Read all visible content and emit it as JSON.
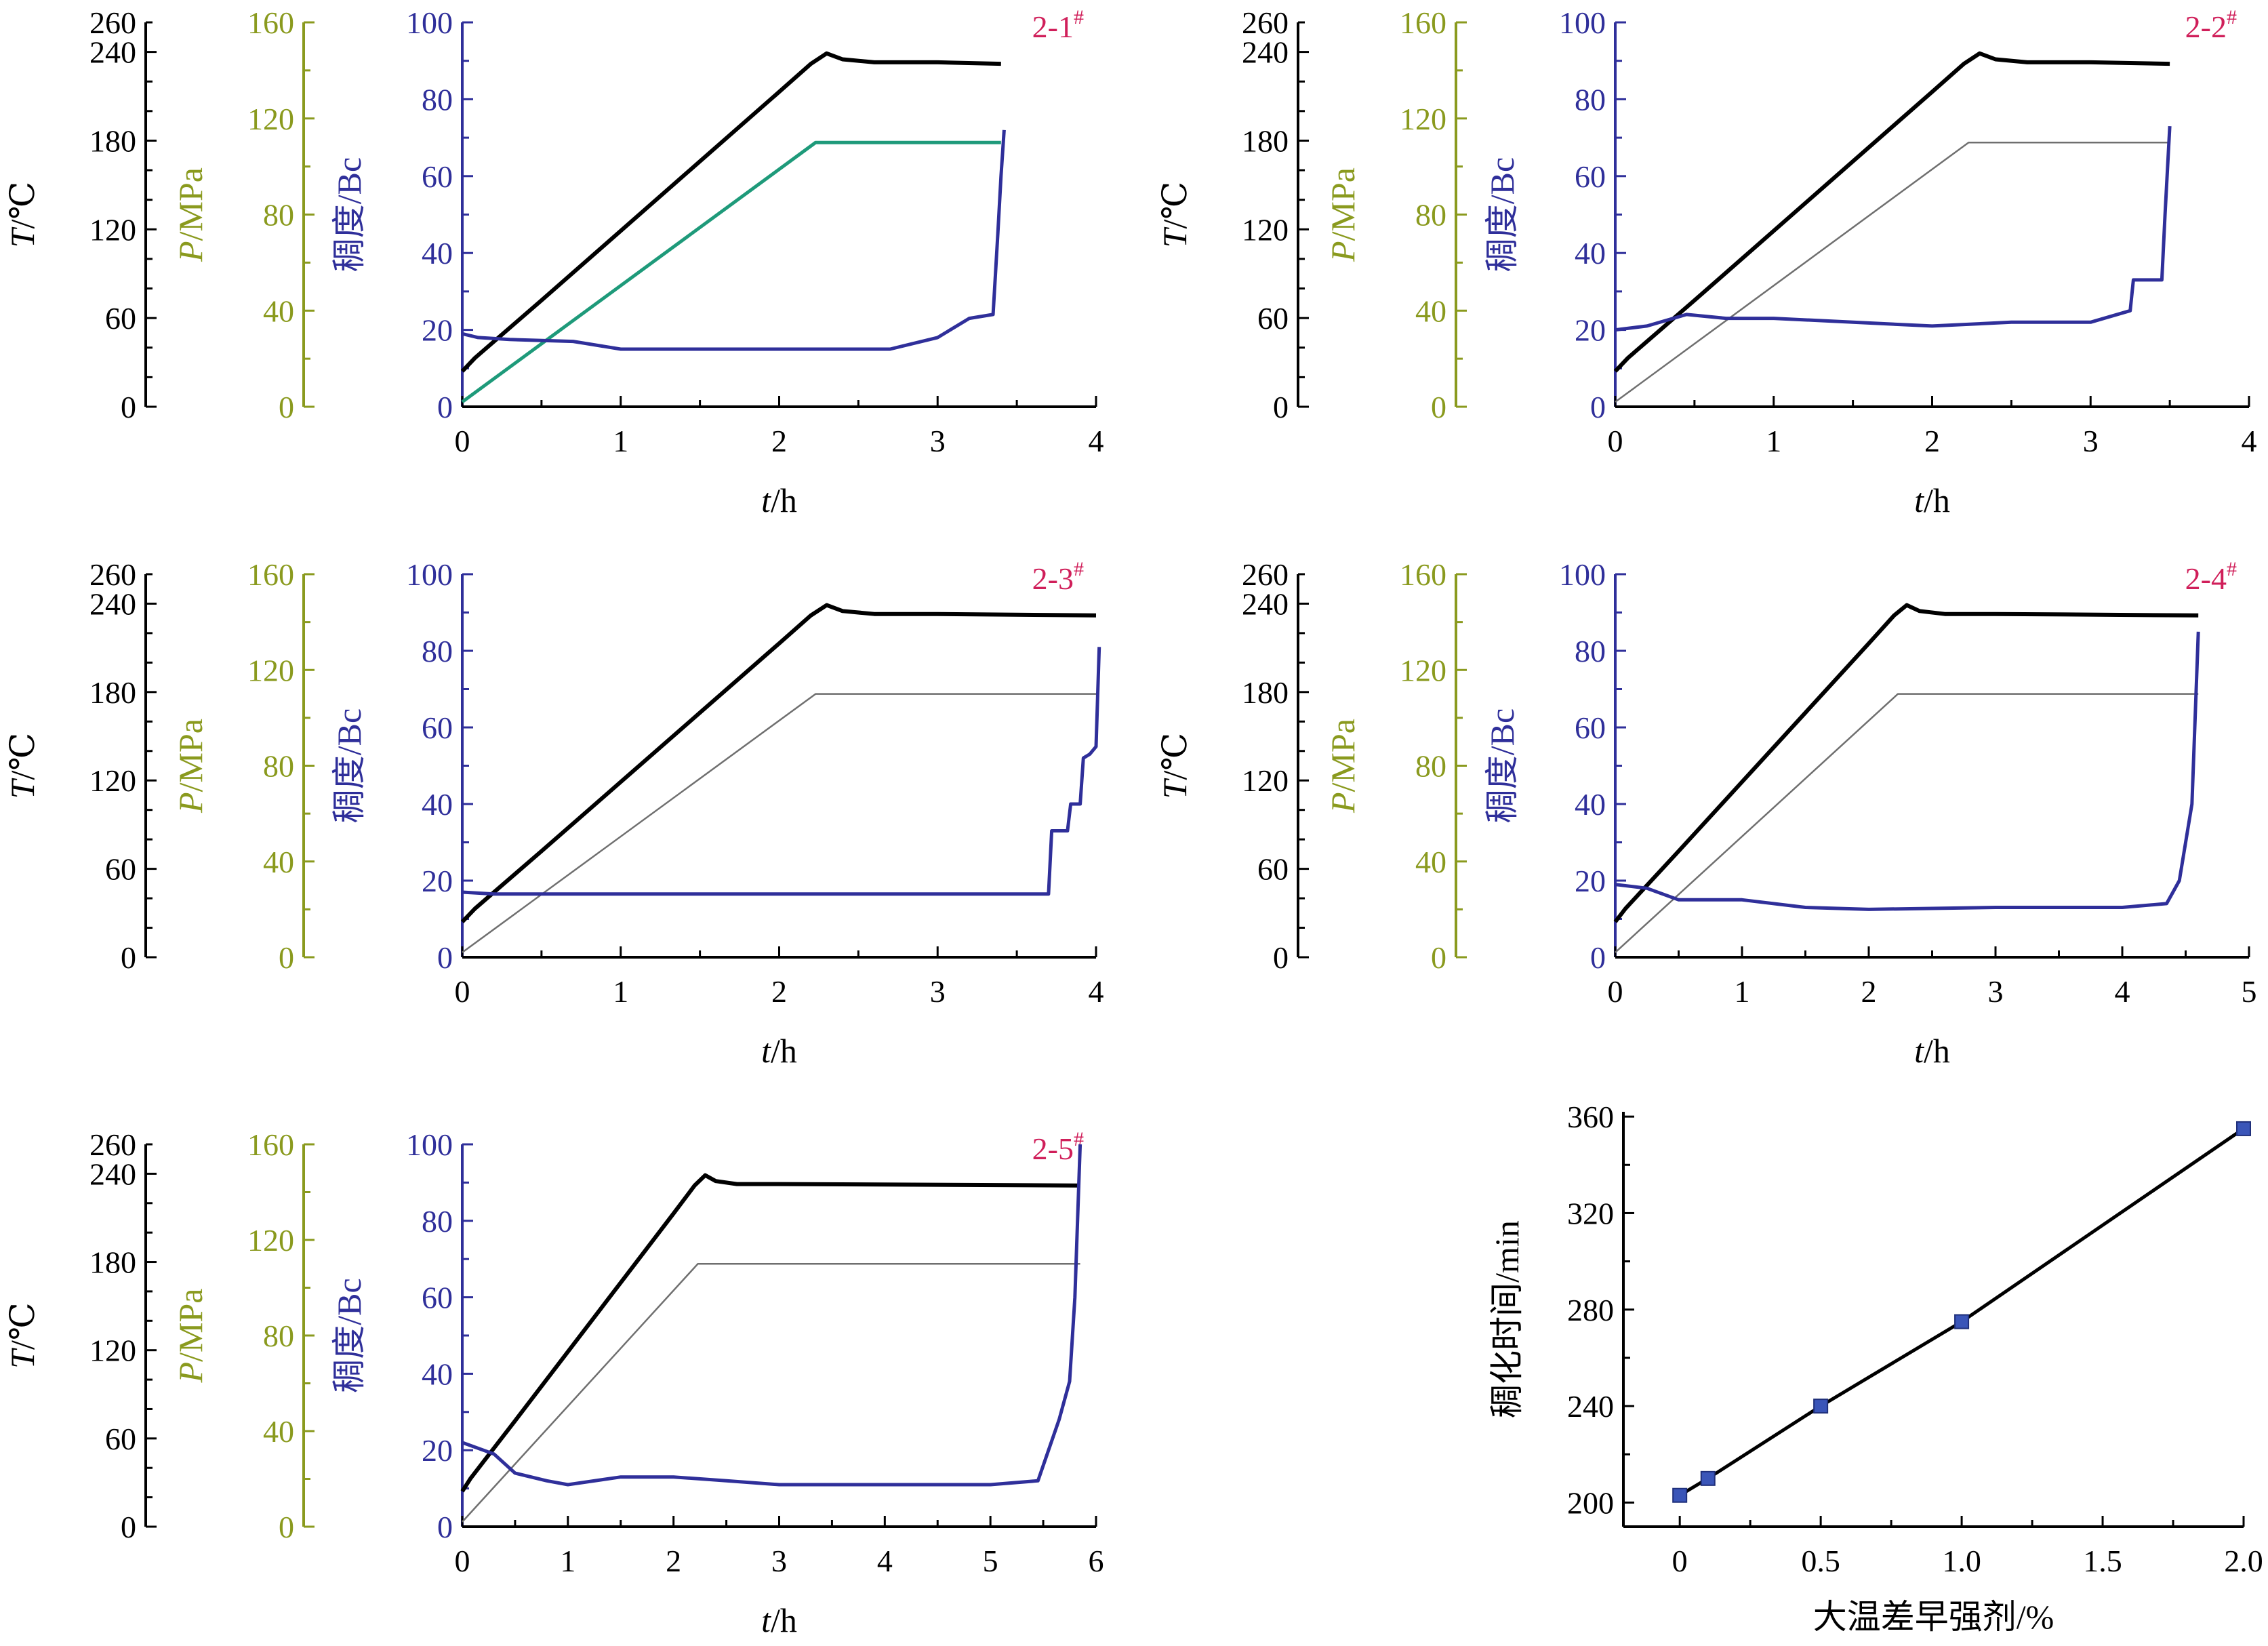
{
  "colors": {
    "temperature": "#000000",
    "pressure": "#8a9a1e",
    "consistency": "#2f2f9a",
    "consistency_alt": "#1e9a7a",
    "pressure_line": "#6f6f6f",
    "sample_label": "#d01f5a",
    "axis": "#000000",
    "marker": "#3a55b8"
  },
  "chart_data": [
    {
      "id": "2-1",
      "type": "line",
      "label_main": "2-1",
      "label_sup": "#",
      "xlabel_var": "t",
      "xlabel_unit": "/h",
      "x_ticks": [
        0,
        1,
        2,
        3,
        4
      ],
      "xlim": [
        0,
        4
      ],
      "t_axis": {
        "var": "T",
        "unit": "/℃",
        "ticks": [
          0,
          60,
          120,
          180,
          240,
          260
        ],
        "ylim": [
          0,
          260
        ]
      },
      "p_axis": {
        "var": "P",
        "unit": "/MPa",
        "ticks": [
          0,
          40,
          80,
          120,
          160
        ],
        "ylim": [
          0,
          160
        ]
      },
      "c_axis": {
        "label": "稠度/Bc",
        "ticks": [
          0,
          20,
          40,
          60,
          80,
          100
        ],
        "ylim": [
          0,
          100
        ]
      },
      "series": [
        {
          "key": "T",
          "axis": "t",
          "x": [
            0,
            0.08,
            0.5,
            1.0,
            1.5,
            2.0,
            2.2,
            2.3,
            2.4,
            2.6,
            3.0,
            3.4
          ],
          "y": [
            24,
            33,
            72,
            119,
            166,
            213,
            232,
            239,
            235,
            233,
            233,
            232
          ]
        },
        {
          "key": "P",
          "axis": "p",
          "x": [
            0,
            2.23,
            3.4
          ],
          "y": [
            2,
            110,
            110
          ]
        },
        {
          "key": "C",
          "axis": "c",
          "x": [
            0,
            0.1,
            0.3,
            0.7,
            1.0,
            2.0,
            2.7,
            3.0,
            3.2,
            3.35,
            3.38,
            3.4,
            3.42
          ],
          "y": [
            19,
            18,
            17.5,
            17,
            15,
            15,
            15,
            18,
            23,
            24,
            45,
            60,
            72
          ]
        }
      ]
    },
    {
      "id": "2-2",
      "type": "line",
      "label_main": "2-2",
      "label_sup": "#",
      "xlabel_var": "t",
      "xlabel_unit": "/h",
      "x_ticks": [
        0,
        1,
        2,
        3,
        4
      ],
      "xlim": [
        0,
        4
      ],
      "t_axis": {
        "var": "T",
        "unit": "/℃",
        "ticks": [
          0,
          60,
          120,
          180,
          240,
          260
        ],
        "ylim": [
          0,
          260
        ]
      },
      "p_axis": {
        "var": "P",
        "unit": "/MPa",
        "ticks": [
          0,
          40,
          80,
          120,
          160
        ],
        "ylim": [
          0,
          160
        ]
      },
      "c_axis": {
        "label": "稠度/Bc",
        "ticks": [
          0,
          20,
          40,
          60,
          80,
          100
        ],
        "ylim": [
          0,
          100
        ]
      },
      "series": [
        {
          "key": "T",
          "axis": "t",
          "x": [
            0,
            0.08,
            0.5,
            1.0,
            1.5,
            2.0,
            2.2,
            2.3,
            2.4,
            2.6,
            3.0,
            3.5
          ],
          "y": [
            24,
            33,
            72,
            119,
            166,
            213,
            232,
            239,
            235,
            233,
            233,
            232
          ]
        },
        {
          "key": "P",
          "axis": "p",
          "x": [
            0,
            2.23,
            3.5
          ],
          "y": [
            2,
            110,
            110
          ]
        },
        {
          "key": "C",
          "axis": "c",
          "x": [
            0,
            0.2,
            0.45,
            0.7,
            1.0,
            1.5,
            2.0,
            2.5,
            3.0,
            3.25,
            3.27,
            3.45,
            3.47,
            3.5
          ],
          "y": [
            20,
            21,
            24,
            23,
            23,
            22,
            21,
            22,
            22,
            25,
            33,
            33,
            50,
            73
          ]
        }
      ]
    },
    {
      "id": "2-3",
      "type": "line",
      "label_main": "2-3",
      "label_sup": "#",
      "xlabel_var": "t",
      "xlabel_unit": "/h",
      "x_ticks": [
        0,
        1,
        2,
        3,
        4
      ],
      "xlim": [
        0,
        4
      ],
      "t_axis": {
        "var": "T",
        "unit": "/℃",
        "ticks": [
          0,
          60,
          120,
          180,
          240,
          260
        ],
        "ylim": [
          0,
          260
        ]
      },
      "p_axis": {
        "var": "P",
        "unit": "/MPa",
        "ticks": [
          0,
          40,
          80,
          120,
          160
        ],
        "ylim": [
          0,
          160
        ]
      },
      "c_axis": {
        "label": "稠度/Bc",
        "ticks": [
          0,
          20,
          40,
          60,
          80,
          100
        ],
        "ylim": [
          0,
          100
        ]
      },
      "series": [
        {
          "key": "T",
          "axis": "t",
          "x": [
            0,
            0.08,
            0.5,
            1.0,
            1.5,
            2.0,
            2.2,
            2.3,
            2.4,
            2.6,
            3.0,
            4.0
          ],
          "y": [
            24,
            33,
            72,
            119,
            166,
            213,
            232,
            239,
            235,
            233,
            233,
            232
          ]
        },
        {
          "key": "P",
          "axis": "p",
          "x": [
            0,
            2.23,
            4.0
          ],
          "y": [
            2,
            110,
            110
          ]
        },
        {
          "key": "C",
          "axis": "c",
          "x": [
            0,
            0.2,
            1.0,
            2.0,
            3.0,
            3.7,
            3.72,
            3.82,
            3.84,
            3.9,
            3.92,
            3.96,
            4.0,
            4.02
          ],
          "y": [
            17,
            16.5,
            16.5,
            16.5,
            16.5,
            16.5,
            33,
            33,
            40,
            40,
            52,
            53,
            55,
            81
          ]
        }
      ]
    },
    {
      "id": "2-4",
      "type": "line",
      "label_main": "2-4",
      "label_sup": "#",
      "xlabel_var": "t",
      "xlabel_unit": "/h",
      "x_ticks": [
        0,
        1,
        2,
        3,
        4,
        5
      ],
      "xlim": [
        0,
        5
      ],
      "t_axis": {
        "var": "T",
        "unit": "/℃",
        "ticks": [
          0,
          60,
          120,
          180,
          240,
          260
        ],
        "ylim": [
          0,
          260
        ]
      },
      "p_axis": {
        "var": "P",
        "unit": "/MPa",
        "ticks": [
          0,
          40,
          80,
          120,
          160
        ],
        "ylim": [
          0,
          160
        ]
      },
      "c_axis": {
        "label": "稠度/Bc",
        "ticks": [
          0,
          20,
          40,
          60,
          80,
          100
        ],
        "ylim": [
          0,
          100
        ]
      },
      "series": [
        {
          "key": "T",
          "axis": "t",
          "x": [
            0,
            0.08,
            0.5,
            1.0,
            1.5,
            2.0,
            2.2,
            2.3,
            2.4,
            2.6,
            3.0,
            4.6
          ],
          "y": [
            24,
            33,
            72,
            119,
            166,
            213,
            232,
            239,
            235,
            233,
            233,
            232
          ]
        },
        {
          "key": "P",
          "axis": "p",
          "x": [
            0,
            2.23,
            4.6
          ],
          "y": [
            2,
            110,
            110
          ]
        },
        {
          "key": "C",
          "axis": "c",
          "x": [
            0,
            0.25,
            0.5,
            1.0,
            1.5,
            2.0,
            3.0,
            4.0,
            4.35,
            4.45,
            4.55,
            4.6
          ],
          "y": [
            19,
            18,
            15,
            15,
            13,
            12.5,
            13,
            13,
            14,
            20,
            40,
            85
          ]
        }
      ]
    },
    {
      "id": "2-5",
      "type": "line",
      "label_main": "2-5",
      "label_sup": "#",
      "xlabel_var": "t",
      "xlabel_unit": "/h",
      "x_ticks": [
        0,
        1,
        2,
        3,
        4,
        5,
        6
      ],
      "xlim": [
        0,
        6
      ],
      "t_axis": {
        "var": "T",
        "unit": "/℃",
        "ticks": [
          0,
          60,
          120,
          180,
          240,
          260
        ],
        "ylim": [
          0,
          260
        ]
      },
      "p_axis": {
        "var": "P",
        "unit": "/MPa",
        "ticks": [
          0,
          40,
          80,
          120,
          160
        ],
        "ylim": [
          0,
          160
        ]
      },
      "c_axis": {
        "label": "稠度/Bc",
        "ticks": [
          0,
          20,
          40,
          60,
          80,
          100
        ],
        "ylim": [
          0,
          100
        ]
      },
      "series": [
        {
          "key": "T",
          "axis": "t",
          "x": [
            0,
            0.08,
            0.5,
            1.0,
            1.5,
            2.0,
            2.2,
            2.3,
            2.4,
            2.6,
            3.0,
            5.85
          ],
          "y": [
            24,
            33,
            72,
            119,
            166,
            213,
            232,
            239,
            235,
            233,
            233,
            232
          ]
        },
        {
          "key": "P",
          "axis": "p",
          "x": [
            0,
            2.23,
            5.85
          ],
          "y": [
            2,
            110,
            110
          ]
        },
        {
          "key": "C",
          "axis": "c",
          "x": [
            0,
            0.3,
            0.5,
            0.8,
            1.0,
            1.5,
            2.0,
            2.5,
            3.0,
            4.0,
            5.0,
            5.45,
            5.55,
            5.65,
            5.75,
            5.8,
            5.85
          ],
          "y": [
            22,
            19,
            14,
            12,
            11,
            13,
            13,
            12,
            11,
            11,
            11,
            12,
            20,
            28,
            38,
            60,
            100
          ]
        }
      ]
    },
    {
      "id": "thickening-time",
      "type": "scatter",
      "xlabel": "大温差早强剂/%",
      "ylabel": "稠化时间/min",
      "x_ticks": [
        0,
        0.5,
        1.0,
        1.5,
        2.0
      ],
      "x_tick_labels": [
        "0",
        "0.5",
        "1.0",
        "1.5",
        "2.0"
      ],
      "xlim": [
        -0.2,
        2.0
      ],
      "y_ticks": [
        200,
        240,
        280,
        320,
        360
      ],
      "ylim": [
        190,
        362
      ],
      "x": [
        0,
        0.1,
        0.5,
        1.0,
        2.0
      ],
      "y": [
        203,
        210,
        240,
        275,
        355
      ],
      "fit_line": true
    }
  ]
}
